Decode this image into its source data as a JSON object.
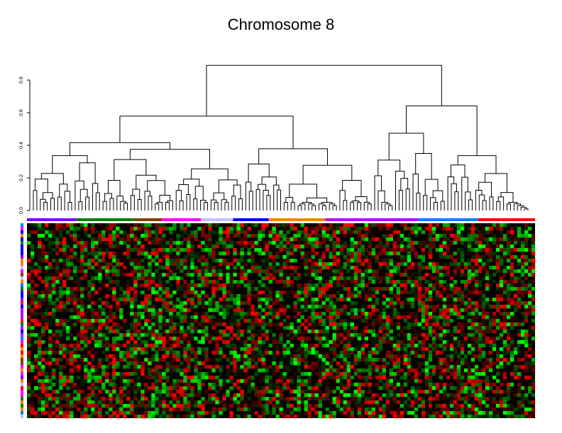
{
  "chart_data": {
    "type": "heatmap",
    "title": "Chromosome 8",
    "dendrogram": {
      "y_ticks": [
        "0.0",
        "0.2",
        "0.4",
        "0.6",
        "0.8"
      ],
      "y_tick_values": [
        0,
        0.2,
        0.4,
        0.6,
        0.8
      ],
      "ylim": [
        0,
        0.9
      ],
      "root_height": 0.89,
      "n_leaves": 143
    },
    "column_groups": [
      {
        "color": "#8000ff",
        "n": 14
      },
      {
        "color": "#008000",
        "n": 16
      },
      {
        "color": "#804000",
        "n": 8
      },
      {
        "color": "#ff00ff",
        "n": 11
      },
      {
        "color": "#c0c0ff",
        "n": 9
      },
      {
        "color": "#0000ff",
        "n": 10
      },
      {
        "color": "#ff8000",
        "n": 16
      },
      {
        "color": "#c000ff",
        "n": 26
      },
      {
        "color": "#0080ff",
        "n": 17
      },
      {
        "color": "#ff0000",
        "n": 16
      }
    ],
    "row_colors": [
      "#0000ff",
      "#ff00ff",
      "#ff8000",
      "#c000ff",
      "#008000",
      "#804000",
      "#ff0000",
      "#0080ff",
      "#8000ff",
      "#c0c0ff"
    ],
    "n_rows": 55,
    "color_scale": {
      "low": "#00ff00",
      "mid": "#000000",
      "high": "#ff0000"
    }
  }
}
